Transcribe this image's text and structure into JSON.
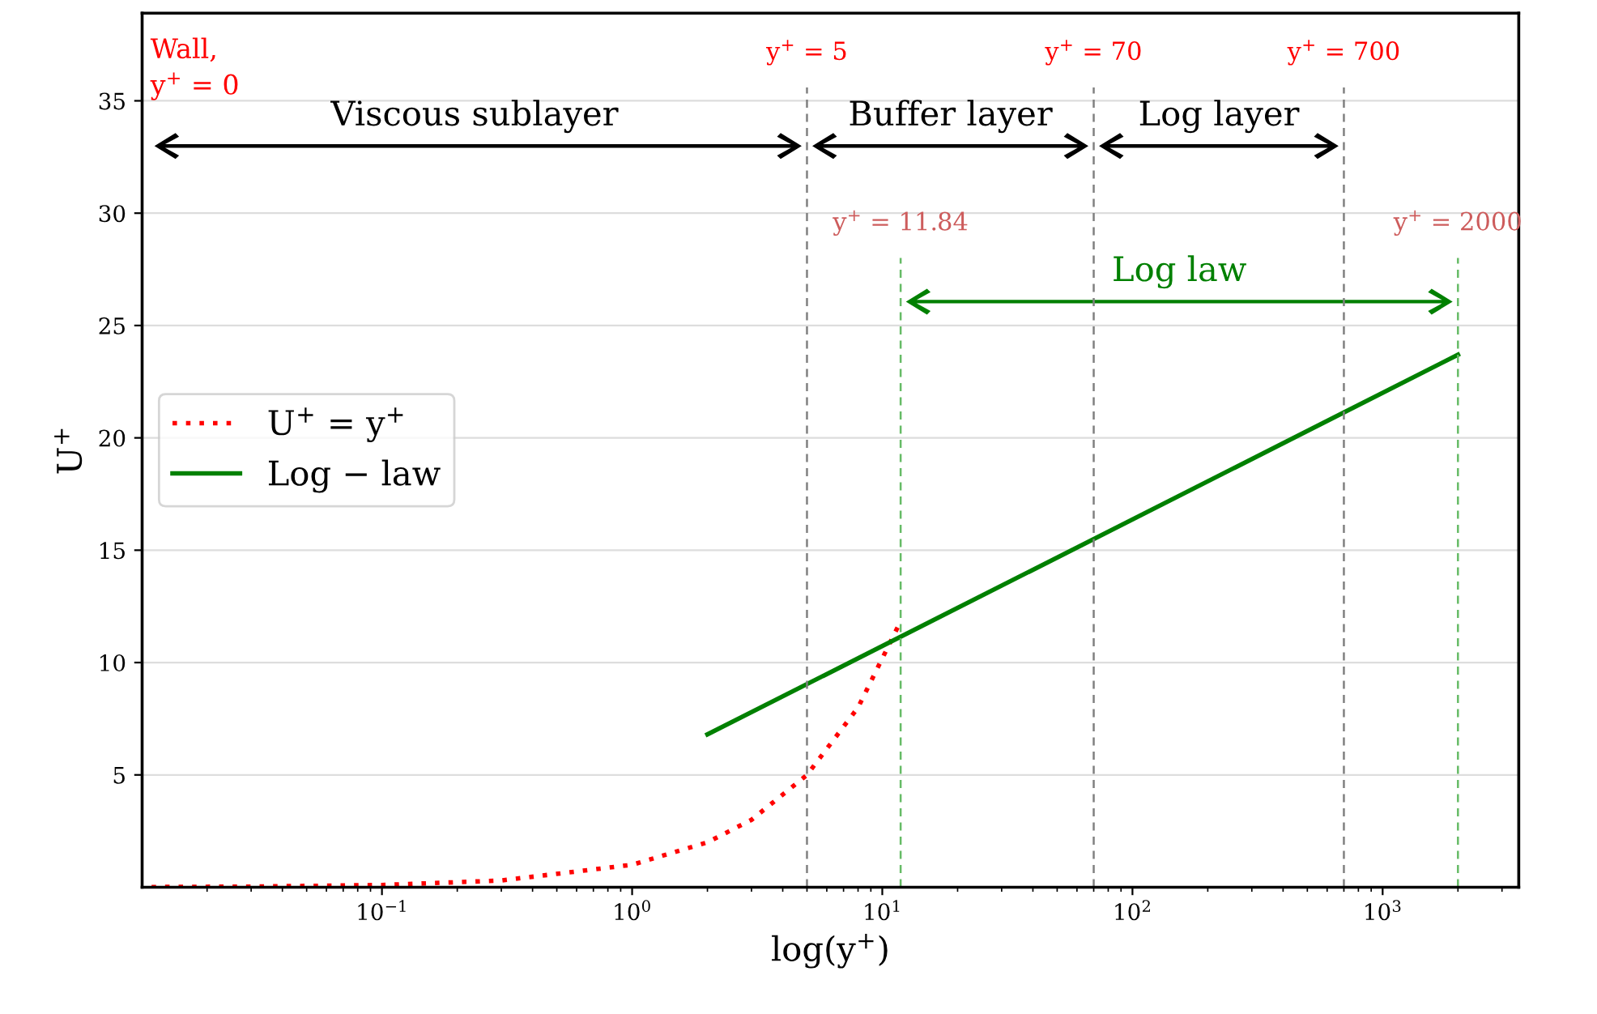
{
  "chart_data": {
    "type": "line",
    "xlabel": "log(y$^{+}$)",
    "ylabel": "U$^{+}$",
    "log": "x",
    "xlim": [
      0.011,
      3500
    ],
    "ylim": [
      0,
      38.9
    ],
    "xticks": [
      {
        "value": 0.1,
        "label": "10$^{−1}$"
      },
      {
        "value": 1,
        "label": "10$^{0}$"
      },
      {
        "value": 10,
        "label": "10$^{1}$"
      },
      {
        "value": 100,
        "label": "10$^{2}$"
      },
      {
        "value": 1000,
        "label": "10$^{3}$"
      }
    ],
    "yticks": [
      5,
      10,
      15,
      20,
      25,
      30,
      35
    ],
    "grid": "y",
    "legend": "center left",
    "series": [
      {
        "name": "U$^{+}$ = y$^{+}$",
        "color": "#ff0000",
        "line_style": "dotted",
        "x": [
          0.012,
          0.03,
          0.1,
          0.3,
          1,
          2,
          3,
          5,
          8,
          11.84
        ],
        "values": [
          0.01,
          0.03,
          0.1,
          0.3,
          1,
          2,
          3,
          5,
          8,
          11.84
        ]
      },
      {
        "name": "Log − law",
        "color": "#008000",
        "line_style": "solid",
        "x": [
          2,
          2000
        ],
        "values": [
          6.8,
          23.7
        ]
      }
    ],
    "ref_lines": [
      {
        "axis": "x",
        "value": 5,
        "label": "y$^{+}$ = 5",
        "color": "#808080",
        "line_style": "dashed"
      },
      {
        "axis": "x",
        "value": 70,
        "label": "y$^{+}$ = 70",
        "color": "#808080",
        "line_style": "dashed"
      },
      {
        "axis": "x",
        "value": 700,
        "label": "y$^{+}$ = 700",
        "color": "#808080",
        "line_style": "dashed"
      },
      {
        "axis": "x",
        "value": 11.84,
        "label": "y$^{+}$ = 11.84",
        "color": "#66bb66",
        "line_style": "dashed"
      },
      {
        "axis": "x",
        "value": 2000,
        "label": "y$^{+}$ = 2000",
        "color": "#66bb66",
        "line_style": "dashed"
      }
    ],
    "annotations": [
      "Wall,\ny$^{+}$ = 0",
      "Viscous sublayer",
      "Buffer layer",
      "Log layer",
      "Log law"
    ]
  }
}
